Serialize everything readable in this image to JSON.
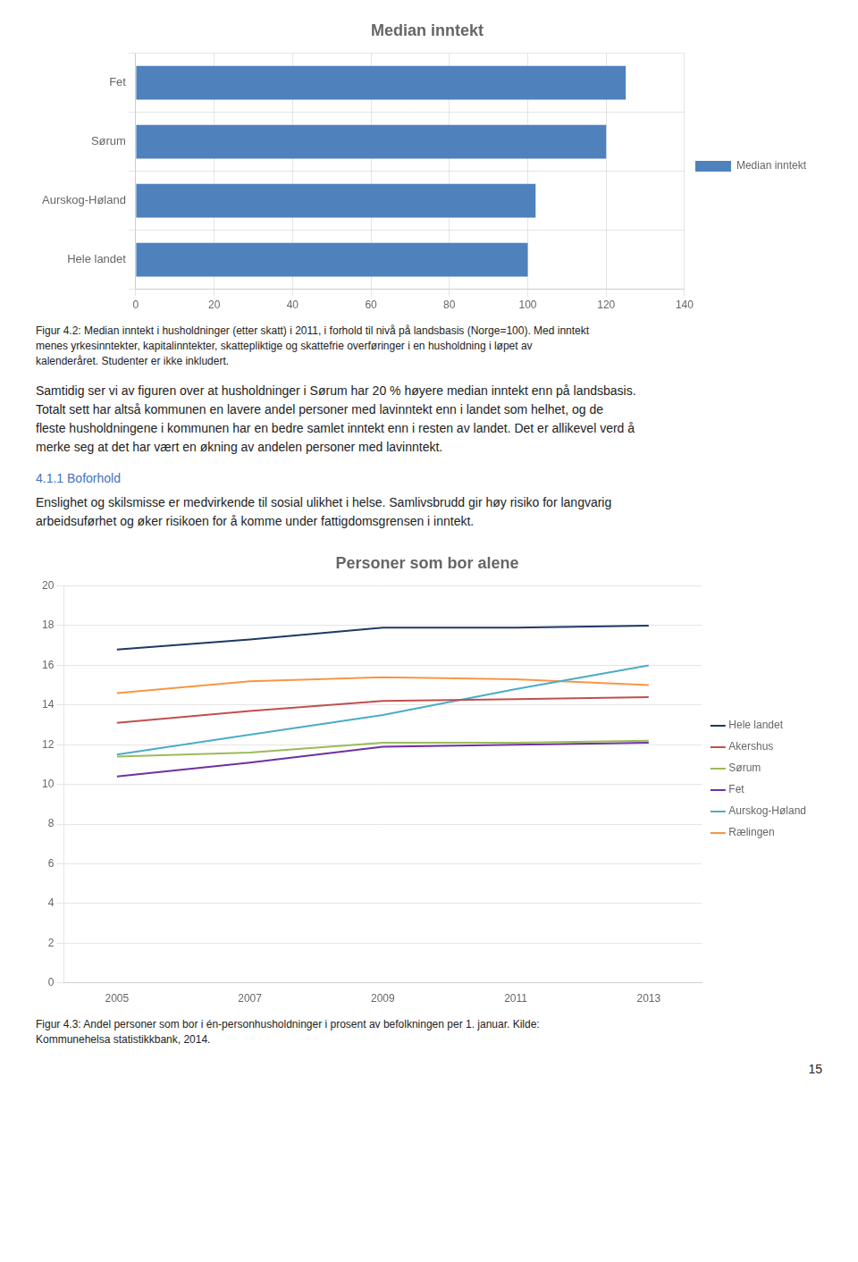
{
  "chart_data": [
    {
      "type": "bar",
      "title": "Median inntekt",
      "orientation": "horizontal",
      "categories": [
        "Hele landet",
        "Aurskog-Høland",
        "Sørum",
        "Fet"
      ],
      "series": [
        {
          "name": "Median inntekt",
          "color": "#4F81BD",
          "values": [
            100,
            102,
            120,
            125
          ]
        }
      ],
      "xlim": [
        0,
        140
      ],
      "xticks": [
        0,
        20,
        40,
        60,
        80,
        100,
        120,
        140
      ],
      "grid": true,
      "legend": "right",
      "annotations": [
        "Figur 4.2: Median inntekt i husholdninger (etter skatt) i 2011, i forhold til nivå på landsbasis (Norge=100). Med inntekt\nmenes yrkesinntekter, kapitalinntekter, skattepliktige og skattefrie overføringer i en husholdning i løpet av\nkalenderåret. Studenter er ikke inkludert.",
        "Samtidig ser vi av figuren over at husholdninger i Sørum har 20 % høyere median inntekt enn på landsbasis.",
        "Totalt sett har altså kommunen en lavere andel personer med lavinntekt enn i landet som helhet, og de",
        "fleste husholdningene i kommunen har en bedre samlet inntekt enn i resten av landet. Det er allikevel verd å",
        "merke seg at det har vært en økning av andelen personer med lavinntekt.",
        {
          "text": "4.1.1 Boforhold",
          "color": "#4472C4"
        },
        "Enslighet og skilsmisse er medvirkende til sosial ulikhet i helse. Samlivsbrudd gir høy risiko for langvarig",
        "arbeidsuførhet og øker risikoen for å komme under fattigdomsgrensen i inntekt."
      ]
    },
    {
      "type": "line",
      "title": "Personer som bor alene",
      "x": [
        2005,
        2007,
        2009,
        2011,
        2013
      ],
      "series": [
        {
          "name": "Hele landet",
          "color": "#1F3864",
          "values": [
            16.8,
            17.3,
            17.9,
            17.9,
            18.0
          ]
        },
        {
          "name": "Akershus",
          "color": "#C0504D",
          "values": [
            13.1,
            13.7,
            14.2,
            14.3,
            14.4
          ]
        },
        {
          "name": "Sørum",
          "color": "#9BBB59",
          "values": [
            11.4,
            11.6,
            12.1,
            12.1,
            12.2
          ]
        },
        {
          "name": "Fet",
          "color": "#7030A0",
          "values": [
            10.4,
            11.1,
            11.9,
            12.0,
            12.1
          ]
        },
        {
          "name": "Aurskog-Høland",
          "color": "#4BACC6",
          "values": [
            11.5,
            12.5,
            13.5,
            14.8,
            16.0
          ]
        },
        {
          "name": "Rælingen",
          "color": "#F79646",
          "values": [
            14.6,
            15.2,
            15.4,
            15.3,
            15.0
          ]
        }
      ],
      "xlim": [
        2004.2,
        2013.8
      ],
      "xticks": [
        2005,
        2007,
        2009,
        2011,
        2013
      ],
      "ylim": [
        0,
        20
      ],
      "yticks": [
        0,
        2,
        4,
        6,
        8,
        10,
        12,
        14,
        16,
        18,
        20
      ],
      "grid": "y",
      "legend": "right",
      "annotations": [
        "Figur 4.3: Andel personer som bor i én-personhusholdninger i prosent av befolkningen per 1. januar. Kilde:\nKommunehelsa statistikkbank, 2014.",
        "15"
      ]
    }
  ]
}
